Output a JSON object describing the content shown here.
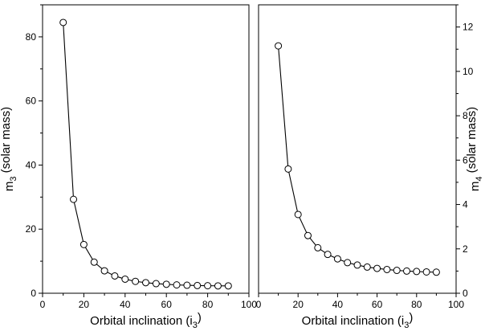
{
  "chart_data": [
    {
      "type": "line",
      "xlabel": "Orbital inclination (i",
      "xlabel_sub": "3",
      "xlabel_tail": ")",
      "ylabel": "m",
      "ylabel_sub": "3",
      "ylabel_tail": " (solar mass)",
      "xlim": [
        0,
        100
      ],
      "ylim": [
        0,
        90
      ],
      "xticks": [
        0,
        20,
        40,
        60,
        80,
        100
      ],
      "yticks": [
        0,
        20,
        40,
        60,
        80
      ],
      "y_axis_side": "left",
      "marker": "open-circle",
      "x": [
        10,
        15,
        20,
        25,
        30,
        35,
        40,
        45,
        50,
        55,
        60,
        65,
        70,
        75,
        80,
        85,
        90
      ],
      "y": [
        84.5,
        29.3,
        15.2,
        9.7,
        7.0,
        5.4,
        4.4,
        3.7,
        3.3,
        3.0,
        2.8,
        2.6,
        2.5,
        2.4,
        2.35,
        2.3,
        2.3
      ]
    },
    {
      "type": "line",
      "xlabel": "Orbital inclination (i",
      "xlabel_sub": "3",
      "xlabel_tail": ")",
      "ylabel": "m",
      "ylabel_sub": "4",
      "ylabel_tail": " (solar mass)",
      "xlim": [
        0,
        100
      ],
      "ylim": [
        0,
        13
      ],
      "xticks": [
        0,
        20,
        40,
        60,
        80,
        100
      ],
      "yticks": [
        0,
        2,
        4,
        6,
        8,
        10,
        12
      ],
      "y_axis_side": "right",
      "marker": "open-circle",
      "x": [
        10,
        15,
        20,
        25,
        30,
        35,
        40,
        45,
        50,
        55,
        60,
        65,
        70,
        75,
        80,
        85,
        90
      ],
      "y": [
        11.15,
        5.6,
        3.55,
        2.6,
        2.05,
        1.75,
        1.55,
        1.38,
        1.27,
        1.18,
        1.12,
        1.07,
        1.03,
        1.0,
        0.98,
        0.96,
        0.95
      ]
    }
  ]
}
